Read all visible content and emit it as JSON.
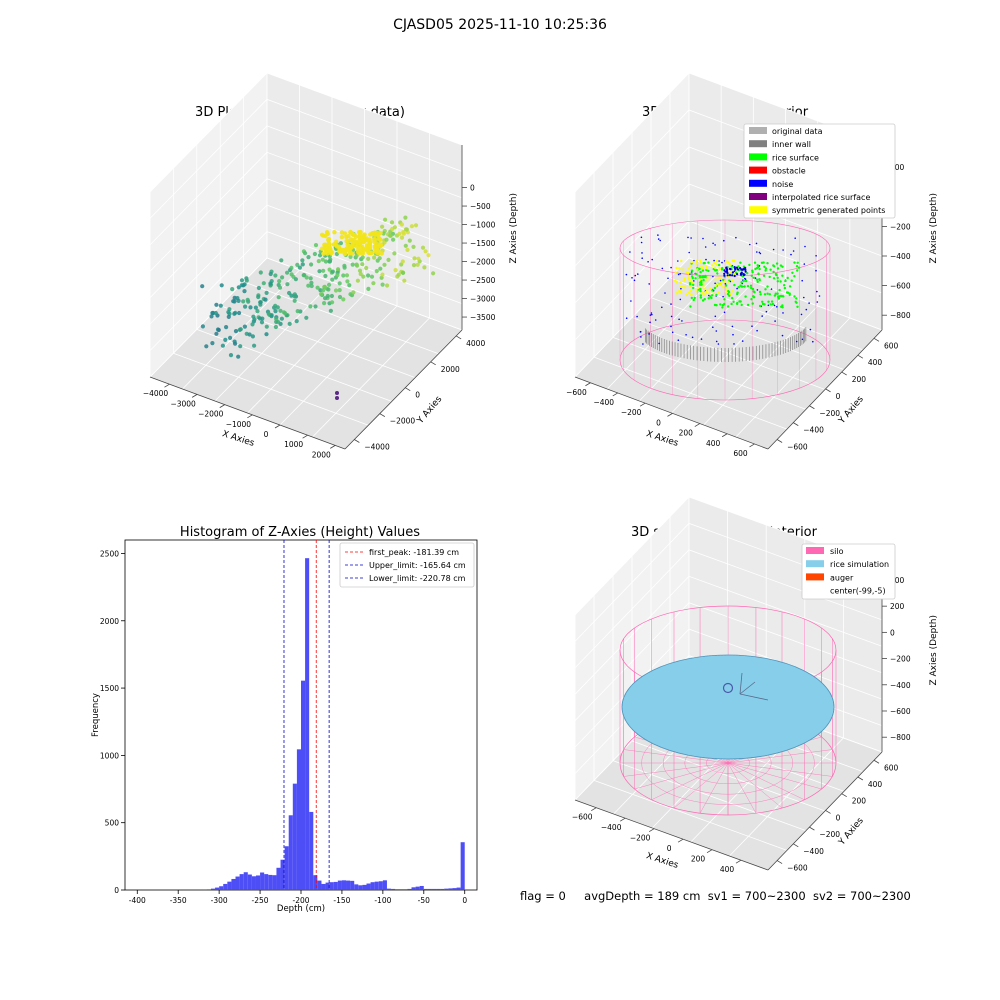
{
  "figure": {
    "suptitle": "CJASD05 2025-11-10 10:25:36"
  },
  "status_line": {
    "flag_text": "flag = 0",
    "avg_depth_text": "avgDepth = 189 cm",
    "sv1_text": "sv1 = 700~2300",
    "sv2_text": "sv2 = 700~2300"
  },
  "colors": {
    "histogram_bar": "#4545f5",
    "first_peak_line": "#ff0000",
    "limit_lines": "#0000cc",
    "pane_light": "#f2f2f2",
    "pane_mid": "#ebebeb",
    "pane_dark": "#e3e3e3",
    "silo_wire": "#ff69b4",
    "rice_simulation": "#87ceeb",
    "auger": "#ff4500",
    "viridis_scale": [
      "#440154",
      "#3b528b",
      "#21918c",
      "#5ec962",
      "#fde725"
    ]
  },
  "chart_data": [
    {
      "type": "scatter",
      "subtype": "3d-scatter",
      "title": "3D Plot of Silo Interior(row data)",
      "xlabel": "X Axies",
      "ylabel": "Y Axies",
      "zlabel": "Z Axies (Depth)",
      "x_ticks": [
        "−4000",
        "−3000",
        "−2000",
        "−1000",
        "0",
        "1000",
        "2000"
      ],
      "y_ticks": [
        "−4000",
        "−2000",
        "0",
        "2000",
        "4000"
      ],
      "z_ticks": [
        "0",
        "−500",
        "−1000",
        "−1500",
        "−2000",
        "−2500",
        "−3000",
        "−3500"
      ],
      "xlim": [
        -4500,
        2200
      ],
      "ylim": [
        -4500,
        4500
      ],
      "zlim": [
        -3700,
        100
      ],
      "colormap": "viridis",
      "grid": true
    },
    {
      "type": "scatter",
      "subtype": "3d-scatter",
      "title": "3D classify of Silo Interior",
      "xlabel": "X Axies",
      "ylabel": "Y Axies",
      "zlabel": "Z Axies (Depth)",
      "x_ticks": [
        "−600",
        "−400",
        "−200",
        "0",
        "200",
        "400",
        "600"
      ],
      "y_ticks": [
        "−600",
        "−400",
        "−200",
        "0",
        "200",
        "400",
        "600"
      ],
      "z_ticks": [
        "200",
        "0",
        "−200",
        "−400",
        "−600",
        "−800"
      ],
      "xlim": [
        -700,
        650
      ],
      "ylim": [
        -650,
        650
      ],
      "zlim": [
        -900,
        300
      ],
      "legend_position": "upper-right",
      "legend": [
        {
          "label": "original data",
          "color": "#b0b0b0"
        },
        {
          "label": "inner wall",
          "color": "#808080"
        },
        {
          "label": "rice surface",
          "color": "#00ff00"
        },
        {
          "label": "obstacle",
          "color": "#ff0000"
        },
        {
          "label": "noise",
          "color": "#0000ff"
        },
        {
          "label": "interpolated rice surface",
          "color": "#800080"
        },
        {
          "label": "symmetric generated points",
          "color": "#ffff00"
        }
      ],
      "grid": true
    },
    {
      "type": "bar",
      "subtype": "histogram",
      "title": "Histogram of Z-Axies (Height) Values",
      "xlabel": "Depth (cm)",
      "ylabel": "Frequency",
      "xlim": [
        -415,
        15
      ],
      "ylim": [
        0,
        2600
      ],
      "x_ticks": [
        -400,
        -350,
        -300,
        -250,
        -200,
        -150,
        -100,
        -50,
        0
      ],
      "y_ticks": [
        0,
        500,
        1000,
        1500,
        2000,
        2500
      ],
      "bin_width": 5,
      "bins": [
        {
          "start": -315,
          "count": 5
        },
        {
          "start": -310,
          "count": 10
        },
        {
          "start": -305,
          "count": 18
        },
        {
          "start": -300,
          "count": 28
        },
        {
          "start": -295,
          "count": 45
        },
        {
          "start": -290,
          "count": 62
        },
        {
          "start": -285,
          "count": 82
        },
        {
          "start": -280,
          "count": 100
        },
        {
          "start": -275,
          "count": 118
        },
        {
          "start": -270,
          "count": 132
        },
        {
          "start": -265,
          "count": 115
        },
        {
          "start": -260,
          "count": 102
        },
        {
          "start": -255,
          "count": 108
        },
        {
          "start": -250,
          "count": 130
        },
        {
          "start": -245,
          "count": 118
        },
        {
          "start": -240,
          "count": 112
        },
        {
          "start": -235,
          "count": 110
        },
        {
          "start": -230,
          "count": 165
        },
        {
          "start": -225,
          "count": 225
        },
        {
          "start": -220,
          "count": 325
        },
        {
          "start": -215,
          "count": 555
        },
        {
          "start": -210,
          "count": 790
        },
        {
          "start": -205,
          "count": 1045
        },
        {
          "start": -200,
          "count": 1555
        },
        {
          "start": -195,
          "count": 2465
        },
        {
          "start": -190,
          "count": 580
        },
        {
          "start": -185,
          "count": 110
        },
        {
          "start": -180,
          "count": 70
        },
        {
          "start": -175,
          "count": 45
        },
        {
          "start": -170,
          "count": 55
        },
        {
          "start": -165,
          "count": 58
        },
        {
          "start": -160,
          "count": 60
        },
        {
          "start": -155,
          "count": 70
        },
        {
          "start": -150,
          "count": 72
        },
        {
          "start": -145,
          "count": 70
        },
        {
          "start": -140,
          "count": 68
        },
        {
          "start": -135,
          "count": 42
        },
        {
          "start": -130,
          "count": 35
        },
        {
          "start": -125,
          "count": 38
        },
        {
          "start": -120,
          "count": 48
        },
        {
          "start": -115,
          "count": 58
        },
        {
          "start": -110,
          "count": 62
        },
        {
          "start": -105,
          "count": 65
        },
        {
          "start": -100,
          "count": 72
        },
        {
          "start": -95,
          "count": 10
        },
        {
          "start": -90,
          "count": 8
        },
        {
          "start": -85,
          "count": 6
        },
        {
          "start": -80,
          "count": 6
        },
        {
          "start": -75,
          "count": 6
        },
        {
          "start": -70,
          "count": 8
        },
        {
          "start": -65,
          "count": 20
        },
        {
          "start": -60,
          "count": 25
        },
        {
          "start": -55,
          "count": 30
        },
        {
          "start": -50,
          "count": 8
        },
        {
          "start": -45,
          "count": 8
        },
        {
          "start": -40,
          "count": 8
        },
        {
          "start": -35,
          "count": 8
        },
        {
          "start": -30,
          "count": 8
        },
        {
          "start": -25,
          "count": 10
        },
        {
          "start": -20,
          "count": 12
        },
        {
          "start": -15,
          "count": 14
        },
        {
          "start": -10,
          "count": 18
        },
        {
          "start": -5,
          "count": 355
        }
      ],
      "vlines": [
        {
          "x": -181.39,
          "style": "dashed",
          "color": "#ff0000"
        },
        {
          "x": -165.64,
          "style": "dashed",
          "color": "#0000cc"
        },
        {
          "x": -220.78,
          "style": "dashed",
          "color": "#0000cc"
        }
      ],
      "legend_position": "upper-right",
      "legend": [
        {
          "label": "first_peak: -181.39 cm",
          "color": "#ff0000"
        },
        {
          "label": "Upper_limit: -165.64 cm",
          "color": "#0000cc"
        },
        {
          "label": "Lower_limit: -220.78 cm",
          "color": "#0000cc"
        }
      ]
    },
    {
      "type": "scatter",
      "subtype": "3d-surface",
      "title": "3D simulation of Silo Interior",
      "xlabel": "X Axies",
      "ylabel": "Y Axies",
      "zlabel": "Z Axies (Depth)",
      "x_ticks": [
        "−600",
        "−400",
        "−200",
        "0",
        "200",
        "400"
      ],
      "y_ticks": [
        "−600",
        "−400",
        "−200",
        "0",
        "200",
        "400",
        "600"
      ],
      "z_ticks": [
        "400",
        "200",
        "0",
        "−200",
        "−400",
        "−600",
        "−800"
      ],
      "xlim": [
        -700,
        500
      ],
      "ylim": [
        -650,
        650
      ],
      "zlim": [
        -900,
        500
      ],
      "legend_position": "upper-right",
      "legend": [
        {
          "label": "silo",
          "color": "#ff69b4"
        },
        {
          "label": "rice simulation",
          "color": "#87ceeb"
        },
        {
          "label": "auger",
          "color": "#ff4500"
        },
        {
          "label": "center(-99,-5)",
          "color": ""
        }
      ],
      "grid": true
    }
  ]
}
